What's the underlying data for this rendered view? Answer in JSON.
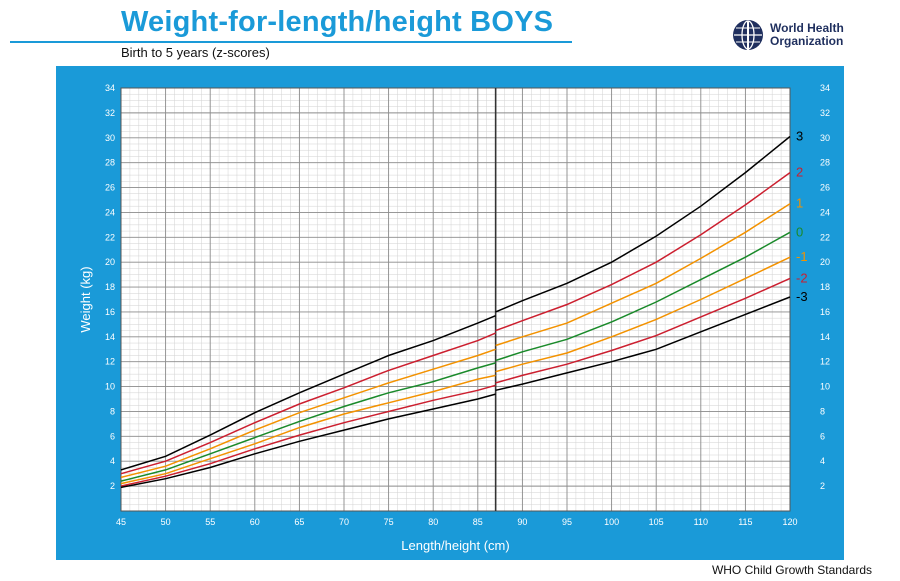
{
  "header": {
    "title": "Weight-for-length/height  BOYS",
    "subtitle": "Birth to 5 years (z-scores)",
    "org_line1": "World Health",
    "org_line2": "Organization",
    "footer": "WHO Child Growth Standards"
  },
  "colors": {
    "brand_blue": "#1a9ad8",
    "grid_major": "#8c8c8c",
    "grid_minor": "#d2d2d2",
    "z3": "#000000",
    "z2": "#cc1f2f",
    "z1": "#f39200",
    "z0": "#1a8a2a"
  },
  "chart_data": {
    "type": "line",
    "title": "Weight-for-length/height  BOYS",
    "subtitle": "Birth to 5 years (z-scores)",
    "xlabel": "Length/height (cm)",
    "ylabel": "Weight (kg)",
    "xlim": [
      45,
      120
    ],
    "ylim": [
      0,
      34
    ],
    "x_ticks": [
      45,
      50,
      55,
      60,
      65,
      70,
      75,
      80,
      85,
      90,
      95,
      100,
      105,
      110,
      115,
      120
    ],
    "y_ticks": [
      2,
      4,
      6,
      8,
      10,
      12,
      14,
      16,
      18,
      20,
      22,
      24,
      26,
      28,
      30,
      32,
      34
    ],
    "grid": true,
    "grid_minor_x": 1,
    "grid_minor_y": 0.5,
    "divider_x": 87,
    "note": "length curves 45-87 cm, height curves 87-120 cm",
    "series": [
      {
        "name": "3",
        "color": "#000000",
        "length": {
          "x": [
            45,
            50,
            55,
            60,
            65,
            70,
            75,
            80,
            85,
            87
          ],
          "y": [
            3.3,
            4.4,
            6.1,
            7.9,
            9.5,
            11.0,
            12.5,
            13.7,
            15.1,
            15.7
          ]
        },
        "height": {
          "x": [
            87,
            90,
            95,
            100,
            105,
            110,
            115,
            120
          ],
          "y": [
            16.0,
            16.9,
            18.3,
            20.0,
            22.1,
            24.5,
            27.2,
            30.1
          ]
        }
      },
      {
        "name": "2",
        "color": "#cc1f2f",
        "length": {
          "x": [
            45,
            50,
            55,
            60,
            65,
            70,
            75,
            80,
            85,
            87
          ],
          "y": [
            3.0,
            4.0,
            5.5,
            7.1,
            8.6,
            9.9,
            11.3,
            12.5,
            13.7,
            14.3
          ]
        },
        "height": {
          "x": [
            87,
            90,
            95,
            100,
            105,
            110,
            115,
            120
          ],
          "y": [
            14.5,
            15.3,
            16.6,
            18.2,
            20.0,
            22.2,
            24.6,
            27.2
          ]
        }
      },
      {
        "name": "1",
        "color": "#f39200",
        "length": {
          "x": [
            45,
            50,
            55,
            60,
            65,
            70,
            75,
            80,
            85,
            87
          ],
          "y": [
            2.7,
            3.6,
            5.0,
            6.5,
            7.9,
            9.1,
            10.3,
            11.4,
            12.5,
            13.0
          ]
        },
        "height": {
          "x": [
            87,
            90,
            95,
            100,
            105,
            110,
            115,
            120
          ],
          "y": [
            13.3,
            14.0,
            15.1,
            16.7,
            18.3,
            20.3,
            22.4,
            24.7
          ]
        }
      },
      {
        "name": "0",
        "color": "#1a8a2a",
        "length": {
          "x": [
            45,
            50,
            55,
            60,
            65,
            70,
            75,
            80,
            85,
            87
          ],
          "y": [
            2.4,
            3.3,
            4.6,
            5.9,
            7.2,
            8.4,
            9.5,
            10.4,
            11.5,
            11.9
          ]
        },
        "height": {
          "x": [
            87,
            90,
            95,
            100,
            105,
            110,
            115,
            120
          ],
          "y": [
            12.1,
            12.8,
            13.8,
            15.2,
            16.8,
            18.6,
            20.4,
            22.4
          ]
        }
      },
      {
        "name": "-1",
        "color": "#f39200",
        "length": {
          "x": [
            45,
            50,
            55,
            60,
            65,
            70,
            75,
            80,
            85,
            87
          ],
          "y": [
            2.2,
            3.0,
            4.2,
            5.4,
            6.7,
            7.8,
            8.7,
            9.6,
            10.6,
            10.9
          ]
        },
        "height": {
          "x": [
            87,
            90,
            95,
            100,
            105,
            110,
            115,
            120
          ],
          "y": [
            11.2,
            11.8,
            12.7,
            14.0,
            15.4,
            17.0,
            18.7,
            20.4
          ]
        }
      },
      {
        "name": "-2",
        "color": "#cc1f2f",
        "length": {
          "x": [
            45,
            50,
            55,
            60,
            65,
            70,
            75,
            80,
            85,
            87
          ],
          "y": [
            2.0,
            2.8,
            3.8,
            5.0,
            6.1,
            7.1,
            8.0,
            8.9,
            9.7,
            10.1
          ]
        },
        "height": {
          "x": [
            87,
            90,
            95,
            100,
            105,
            110,
            115,
            120
          ],
          "y": [
            10.3,
            10.9,
            11.8,
            12.9,
            14.1,
            15.6,
            17.1,
            18.7
          ]
        }
      },
      {
        "name": "-3",
        "color": "#000000",
        "length": {
          "x": [
            45,
            50,
            55,
            60,
            65,
            70,
            75,
            80,
            85,
            87
          ],
          "y": [
            1.9,
            2.6,
            3.5,
            4.6,
            5.6,
            6.5,
            7.4,
            8.2,
            9.0,
            9.4
          ]
        },
        "height": {
          "x": [
            87,
            90,
            95,
            100,
            105,
            110,
            115,
            120
          ],
          "y": [
            9.7,
            10.2,
            11.1,
            12.0,
            13.0,
            14.4,
            15.8,
            17.2
          ]
        }
      }
    ]
  }
}
